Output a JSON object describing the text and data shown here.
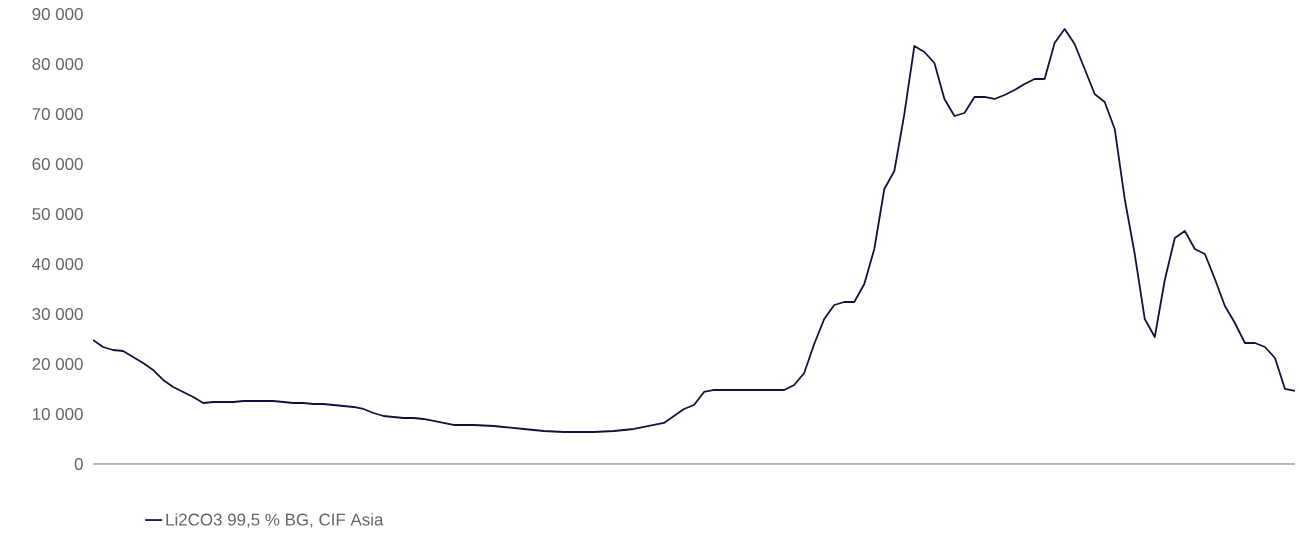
{
  "chart_data": {
    "type": "line",
    "categories": [
      null,
      null,
      null,
      null,
      null,
      null,
      null,
      null,
      null,
      null,
      null,
      null,
      null,
      null,
      null,
      null,
      null,
      null,
      null,
      null,
      null,
      null,
      null,
      null,
      null,
      null,
      null,
      null,
      null,
      null,
      null,
      null,
      null,
      null,
      null,
      null,
      null,
      null,
      null,
      null,
      null,
      null,
      null,
      null,
      null,
      null,
      null,
      null,
      null,
      null,
      null,
      null,
      null,
      null,
      null,
      null,
      null,
      null,
      null,
      null,
      null,
      null,
      null,
      null,
      null,
      null,
      null,
      null,
      null,
      null,
      null,
      null,
      null,
      null,
      null,
      null,
      null,
      null,
      null,
      null,
      null,
      null,
      null,
      null,
      null,
      null,
      null,
      null,
      null,
      null,
      null,
      null,
      null,
      null,
      null,
      null,
      null,
      null,
      null,
      null,
      null,
      null,
      null,
      null,
      null,
      null,
      null,
      null,
      null,
      null,
      null,
      null,
      null,
      null,
      null,
      null,
      null,
      null,
      null,
      null,
      null
    ],
    "series": [
      {
        "name": "Li2CO3 99,5 % BG, CIF Asia",
        "color": "#14103f",
        "values": [
          24800,
          23400,
          22800,
          22600,
          21400,
          20200,
          18800,
          16800,
          15400,
          14400,
          13400,
          12200,
          12400,
          12400,
          12400,
          12600,
          12600,
          12600,
          12600,
          12400,
          12200,
          12200,
          12000,
          12000,
          11800,
          11600,
          11400,
          11000,
          10200,
          9600,
          9400,
          9200,
          9200,
          9000,
          8600,
          8200,
          7800,
          7800,
          7800,
          7700,
          7600,
          7400,
          7200,
          7000,
          6800,
          6600,
          6500,
          6400,
          6400,
          6400,
          6400,
          6500,
          6600,
          6800,
          7000,
          7400,
          7800,
          8200,
          9600,
          11000,
          11800,
          14400,
          14800,
          14800,
          14800,
          14800,
          14800,
          14800,
          14800,
          14800,
          15800,
          18200,
          24000,
          29000,
          31800,
          32400,
          32400,
          36000,
          43000,
          55000,
          58600,
          70000,
          83600,
          82400,
          80200,
          73000,
          69600,
          70200,
          73400,
          73400,
          73000,
          73800,
          74800,
          76000,
          77000,
          77000,
          84200,
          87000,
          84000,
          79000,
          74000,
          72400,
          67000,
          53000,
          42000,
          29000,
          25400,
          36800,
          45200,
          46600,
          43000,
          42000,
          37000,
          31600,
          28200,
          24200,
          24200,
          23400,
          21200,
          15000,
          14600
        ]
      }
    ],
    "ylim": [
      0,
      90000
    ],
    "yticks": [
      {
        "value": 0,
        "label": "0"
      },
      {
        "value": 10000,
        "label": "10 000"
      },
      {
        "value": 20000,
        "label": "20 000"
      },
      {
        "value": 30000,
        "label": "30 000"
      },
      {
        "value": 40000,
        "label": "40 000"
      },
      {
        "value": 50000,
        "label": "50 000"
      },
      {
        "value": 60000,
        "label": "60 000"
      },
      {
        "value": 70000,
        "label": "70 000"
      },
      {
        "value": 80000,
        "label": "80 000"
      },
      {
        "value": 90000,
        "label": "90 000"
      }
    ],
    "tick_labels": "y",
    "legend": "bottom left",
    "marker": "none",
    "line_style": "solid"
  }
}
